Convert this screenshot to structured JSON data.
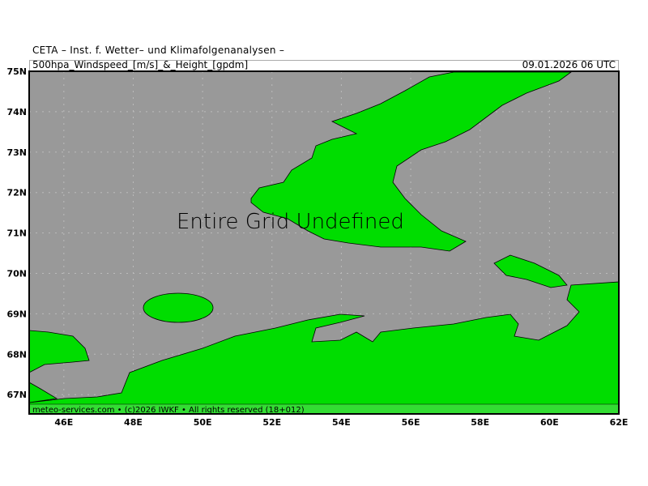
{
  "header": {
    "title": "CETA – Inst. f. Wetter– und Klimafolgenanalysen –",
    "product": "500hpa_Windspeed_[m/s]_&_Height_[gpdm]",
    "valid_time": "09.01.2026 06 UTC"
  },
  "map": {
    "message": "Entire Grid Undefined",
    "footer": "meteo-services.com • (c)2026 IWKF • All rights reserved (18+012)",
    "colors": {
      "sea": "#999999",
      "land": "#00dd00",
      "footer_bar": "#33dd33"
    },
    "lon_labels": [
      "46E",
      "48E",
      "50E",
      "52E",
      "54E",
      "56E",
      "58E",
      "60E",
      "62E"
    ],
    "lat_labels": [
      "75N",
      "74N",
      "73N",
      "72N",
      "71N",
      "70N",
      "69N",
      "68N",
      "67N"
    ]
  }
}
